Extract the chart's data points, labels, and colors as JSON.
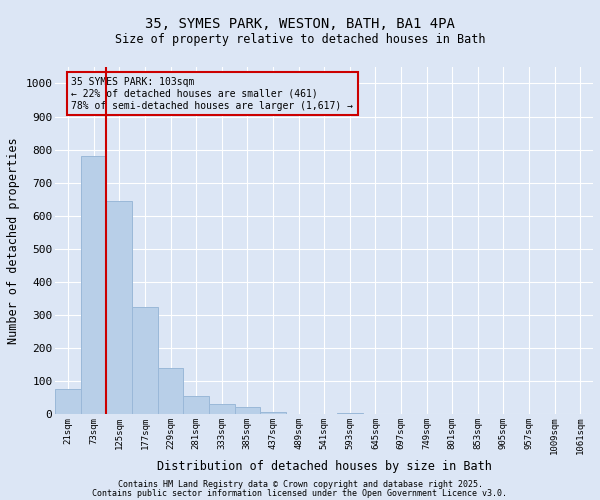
{
  "title_line1": "35, SYMES PARK, WESTON, BATH, BA1 4PA",
  "title_line2": "Size of property relative to detached houses in Bath",
  "xlabel": "Distribution of detached houses by size in Bath",
  "ylabel": "Number of detached properties",
  "bar_color": "#b8cfe8",
  "bar_edge_color": "#9ab8d8",
  "background_color": "#dce6f5",
  "grid_color": "#ffffff",
  "annotation_box_color": "#cc0000",
  "vline_color": "#cc0000",
  "bins": [
    "21sqm",
    "73sqm",
    "125sqm",
    "177sqm",
    "229sqm",
    "281sqm",
    "333sqm",
    "385sqm",
    "437sqm",
    "489sqm",
    "541sqm",
    "593sqm",
    "645sqm",
    "697sqm",
    "749sqm",
    "801sqm",
    "853sqm",
    "905sqm",
    "957sqm",
    "1009sqm",
    "1061sqm"
  ],
  "values": [
    75,
    780,
    645,
    325,
    140,
    55,
    30,
    20,
    7,
    0,
    0,
    3,
    0,
    0,
    0,
    0,
    0,
    0,
    0,
    0,
    0
  ],
  "ylim": [
    0,
    1050
  ],
  "yticks": [
    0,
    100,
    200,
    300,
    400,
    500,
    600,
    700,
    800,
    900,
    1000
  ],
  "annotation_line1": "35 SYMES PARK: 103sqm",
  "annotation_line2": "← 22% of detached houses are smaller (461)",
  "annotation_line3": "78% of semi-detached houses are larger (1,617) →",
  "footnote1": "Contains HM Land Registry data © Crown copyright and database right 2025.",
  "footnote2": "Contains public sector information licensed under the Open Government Licence v3.0.",
  "vline_bin_index": 1.5
}
